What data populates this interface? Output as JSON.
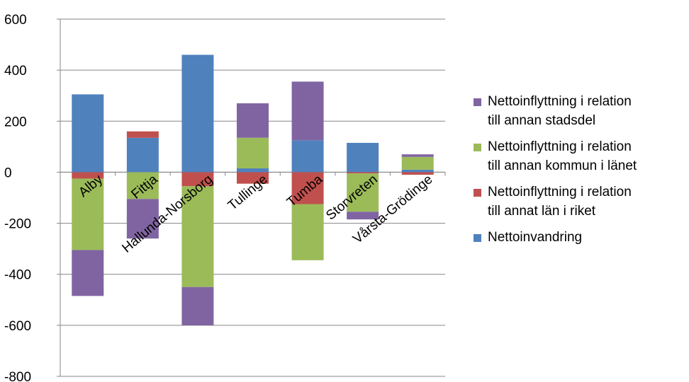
{
  "chart_data": {
    "type": "bar",
    "stacked": true,
    "title": "",
    "xlabel": "",
    "ylabel": "",
    "ylim": [
      -800,
      600
    ],
    "yticks": [
      600,
      400,
      200,
      0,
      -200,
      -400,
      -600,
      -800
    ],
    "ytick_labels": [
      "600",
      "400",
      "200",
      "0",
      "-200",
      "-400",
      "-600",
      "-800"
    ],
    "grid": true,
    "legend_position": "right",
    "categories": [
      "Alby",
      "Fittja",
      "Hallunda-Norsborg",
      "Tullinge",
      "Tumba",
      "Storvreten",
      "Vårsta-Grödinge"
    ],
    "series": [
      {
        "key": "invandring",
        "name_lines": [
          "Nettoinvandring"
        ],
        "color": "#4F81BD",
        "values": [
          305,
          135,
          460,
          15,
          125,
          115,
          10
        ]
      },
      {
        "key": "annat_lan",
        "name_lines": [
          "Nettoinflyttning i relation",
          "till annat län i riket"
        ],
        "color": "#C0504D",
        "values": [
          -25,
          25,
          -55,
          -45,
          -125,
          -5,
          -10
        ]
      },
      {
        "key": "annan_kommun",
        "name_lines": [
          "Nettoinflyttning i relation",
          "till annan kommun i länet"
        ],
        "color": "#9BBB59",
        "values": [
          -280,
          -105,
          -395,
          120,
          -220,
          -150,
          50
        ]
      },
      {
        "key": "annan_stadsdel",
        "name_lines": [
          "Nettoinflyttning i relation",
          "till annan stadsdel"
        ],
        "color": "#8064A2",
        "values": [
          -180,
          -155,
          -150,
          135,
          230,
          -30,
          10
        ]
      }
    ],
    "legend_order": [
      "annan_stadsdel",
      "annan_kommun",
      "annat_lan",
      "invandring"
    ]
  }
}
